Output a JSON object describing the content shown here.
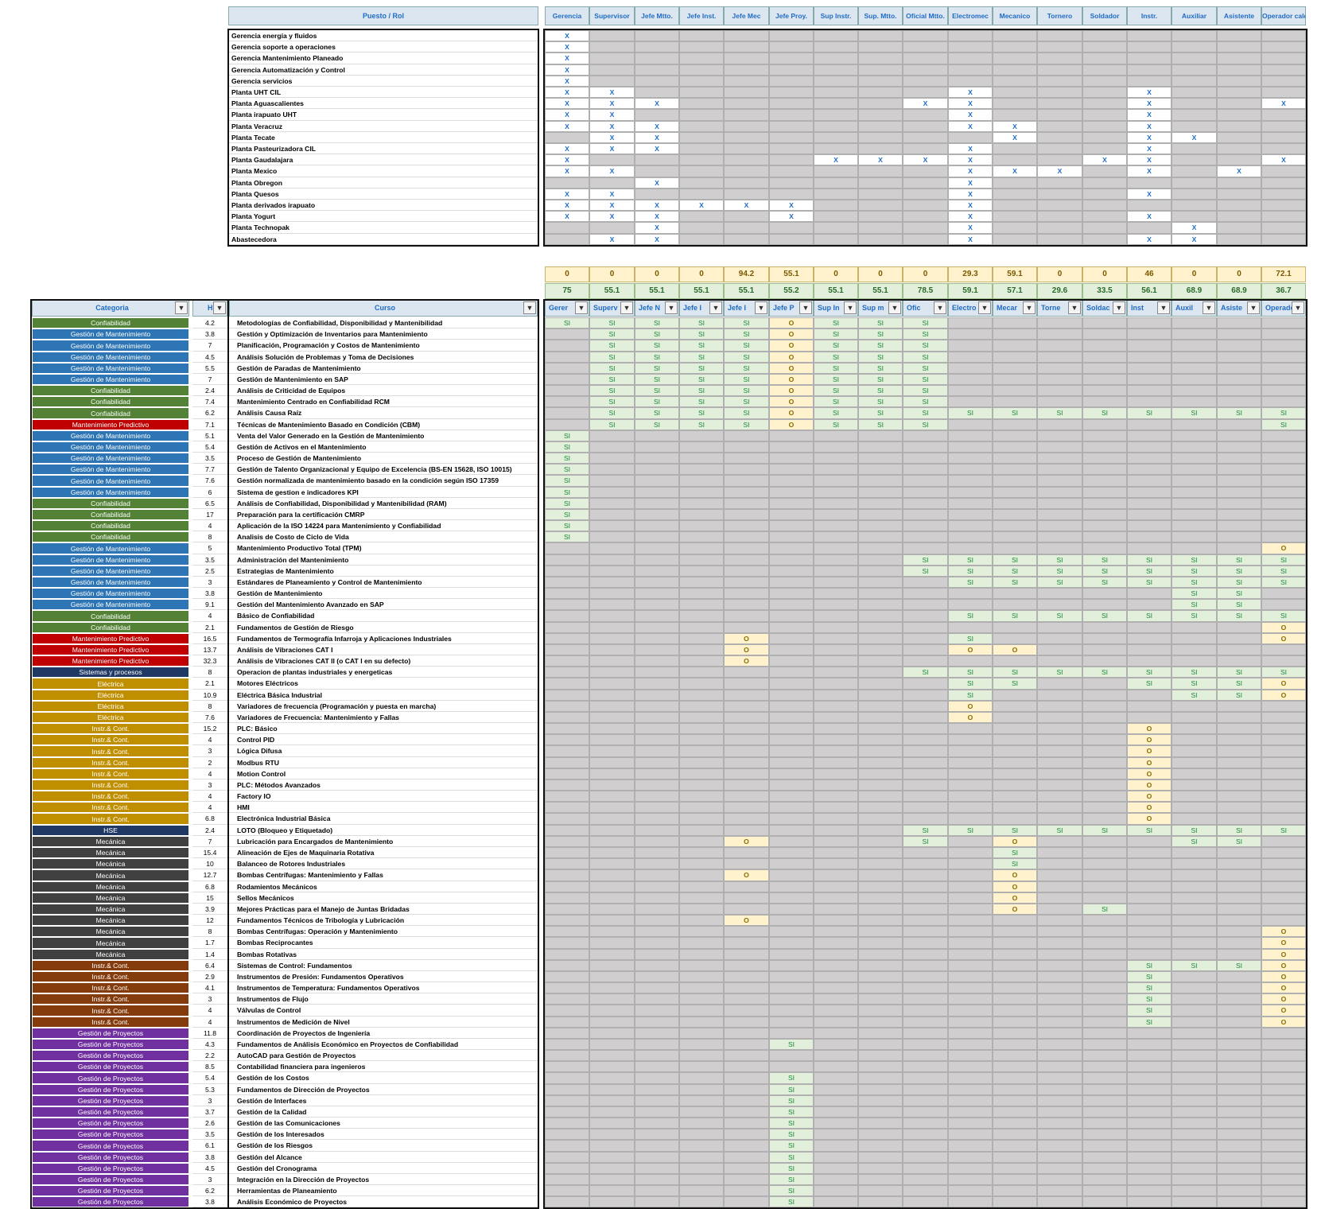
{
  "top_header": {
    "puesto_label": "Puesto / Rol",
    "roles": [
      "Gerencia",
      "Supervisor",
      "Jefe Mtto.",
      "Jefe Inst.",
      "Jefe Mec",
      "Jefe Proy.",
      "Sup Instr.",
      "Sup. Mtto.",
      "Oficial Mtto.",
      "Electromec",
      "Mecanico",
      "Tornero",
      "Soldador",
      "Instr.",
      "Auxiliar",
      "Asistente",
      "Operador cald."
    ]
  },
  "plants": [
    {
      "name": "Gerencia energía y fluidos",
      "x": [
        0
      ]
    },
    {
      "name": "Gerencia soporte a operaciones",
      "x": [
        0
      ]
    },
    {
      "name": "Gerencia Mantenimiento Planeado",
      "x": [
        0
      ]
    },
    {
      "name": "Gerencia Automatización y Control",
      "x": [
        0
      ]
    },
    {
      "name": "Gerencia servicios",
      "x": [
        0
      ]
    },
    {
      "name": "Planta UHT CIL",
      "x": [
        0,
        1,
        9,
        13
      ]
    },
    {
      "name": "Planta Aguascalientes",
      "x": [
        0,
        1,
        2,
        8,
        9,
        13,
        16
      ]
    },
    {
      "name": "Planta irapuato UHT",
      "x": [
        0,
        1,
        9,
        13
      ]
    },
    {
      "name": "Planta Veracruz",
      "x": [
        0,
        1,
        2,
        9,
        10,
        13
      ]
    },
    {
      "name": "Planta Tecate",
      "x": [
        1,
        2,
        10,
        13,
        14
      ]
    },
    {
      "name": "Planta Pasteurizadora CIL",
      "x": [
        0,
        1,
        2,
        9,
        13
      ]
    },
    {
      "name": "Planta Gaudalajara",
      "x": [
        0,
        6,
        7,
        8,
        9,
        12,
        13,
        16
      ]
    },
    {
      "name": "Planta Mexico",
      "x": [
        0,
        1,
        9,
        10,
        11,
        13,
        15
      ]
    },
    {
      "name": "Planta Obregon",
      "x": [
        2,
        9
      ]
    },
    {
      "name": "Planta Quesos",
      "x": [
        0,
        1,
        9,
        13
      ]
    },
    {
      "name": "Planta derivados irapuato",
      "x": [
        0,
        1,
        2,
        3,
        4,
        5,
        9
      ]
    },
    {
      "name": "Planta Yogurt",
      "x": [
        0,
        1,
        2,
        5,
        9,
        13
      ]
    },
    {
      "name": "Planta Technopak",
      "x": [
        2,
        9,
        14
      ]
    },
    {
      "name": "Abastecedora",
      "x": [
        1,
        2,
        9,
        13,
        14
      ]
    }
  ],
  "x_mark": "X",
  "summary_row1": [
    "0",
    "0",
    "0",
    "0",
    "94.2",
    "55.1",
    "0",
    "0",
    "0",
    "29.3",
    "59.1",
    "0",
    "0",
    "46",
    "0",
    "0",
    "72.1"
  ],
  "summary_row2": [
    "75",
    "55.1",
    "55.1",
    "55.1",
    "55.1",
    "55.2",
    "55.1",
    "55.1",
    "78.5",
    "59.1",
    "57.1",
    "29.6",
    "33.5",
    "56.1",
    "68.9",
    "68.9",
    "36.7"
  ],
  "filter_header": {
    "categoria": "Categoria",
    "hrs": "Hr",
    "curso": "Curso",
    "roles_short": [
      "Gerer",
      "Superv",
      "Jefe N",
      "Jefe I",
      "Jefe I",
      "Jefe P",
      "Sup In",
      "Sup m",
      "Ofic",
      "Electro",
      "Mecar",
      "Torne",
      "Soldac",
      "Inst",
      "Auxil",
      "Asiste",
      "Operador"
    ]
  },
  "colors": {
    "Confiabilidad": "#538135",
    "Gestión de Mantenimiento": "#2e75b6",
    "Mantenimiento Predictivo": "#c00000",
    "Sistemas y procesos": "#1f3864",
    "Eléctrica": "#bf8f00",
    "Instr.& Cont. (gold)": "#bf8f00",
    "HSE": "#203864",
    "Mecánica": "#404040",
    "Instr.& Cont. (brown)": "#843c0c",
    "Gestión de Proyectos": "#7030a0",
    "x_mark": "#1f6cc5",
    "si_fill": "#e2efda",
    "o_fill": "#fff2cc",
    "gray_fill": "#d0cece"
  },
  "courses": [
    {
      "cat": "Confiabilidad",
      "color": "#538135",
      "hrs": "4.2",
      "name": "Metodologías de Confiabilidad, Disponibilidad y Mantenibilidad",
      "v": "SSSSSOSSS--------"
    },
    {
      "cat": "Gestión de Mantenimiento",
      "color": "#2e75b6",
      "hrs": "3.8",
      "name": "Gestión y Optimización de Inventarios para Mantenimiento",
      "v": "-SSSSOSSS--------"
    },
    {
      "cat": "Gestión de Mantenimiento",
      "color": "#2e75b6",
      "hrs": "7",
      "name": "Planificación, Programación y Costos de Mantenimiento",
      "v": "-SSSSOSSS--------"
    },
    {
      "cat": "Gestión de Mantenimiento",
      "color": "#2e75b6",
      "hrs": "4.5",
      "name": "Análisis Solución de Problemas y Toma de Decisiones",
      "v": "-SSSSOSSS--------"
    },
    {
      "cat": "Gestión de Mantenimiento",
      "color": "#2e75b6",
      "hrs": "5.5",
      "name": "Gestión de Paradas de Mantenimiento",
      "v": "-SSSSOSSS--------"
    },
    {
      "cat": "Gestión de Mantenimiento",
      "color": "#2e75b6",
      "hrs": "7",
      "name": "Gestión de Mantenimiento en SAP",
      "v": "-SSSSOSSS--------"
    },
    {
      "cat": "Confiabilidad",
      "color": "#538135",
      "hrs": "2.4",
      "name": "Análisis de Criticidad de Equipos",
      "v": "-SSSSOSSS--------"
    },
    {
      "cat": "Confiabilidad",
      "color": "#538135",
      "hrs": "7.4",
      "name": "Mantenimiento Centrado en Confiabilidad RCM",
      "v": "-SSSSOSSS--------"
    },
    {
      "cat": "Confiabilidad",
      "color": "#538135",
      "hrs": "6.2",
      "name": "Análisis Causa Raíz",
      "v": "-SSSSOSSSSSSSSSSS"
    },
    {
      "cat": "Mantenimiento Predictivo",
      "color": "#c00000",
      "hrs": "7.1",
      "name": "Técnicas de Mantenimiento Basado en Condición (CBM)",
      "v": "-SSSSOSSS-------S"
    },
    {
      "cat": "Gestión de Mantenimiento",
      "color": "#2e75b6",
      "hrs": "5.1",
      "name": "Venta del Valor Generado en la Gestión de Mantenimiento",
      "v": "S----------------"
    },
    {
      "cat": "Gestión de Mantenimiento",
      "color": "#2e75b6",
      "hrs": "5.4",
      "name": "Gestión de Activos en el Mantenimiento",
      "v": "S----------------"
    },
    {
      "cat": "Gestión de Mantenimiento",
      "color": "#2e75b6",
      "hrs": "3.5",
      "name": "Proceso de Gestión de Mantenimiento",
      "v": "S----------------"
    },
    {
      "cat": "Gestión de Mantenimiento",
      "color": "#2e75b6",
      "hrs": "7.7",
      "name": "Gestión de Talento Organizacional y Equipo de Excelencia (BS-EN 15628, ISO 10015)",
      "v": "S----------------"
    },
    {
      "cat": "Gestión de Mantenimiento",
      "color": "#2e75b6",
      "hrs": "7.6",
      "name": "Gestión normalizada de mantenimiento basado en la condición según ISO 17359",
      "v": "S----------------"
    },
    {
      "cat": "Gestión de Mantenimiento",
      "color": "#2e75b6",
      "hrs": "6",
      "name": "Sistema de gestion e indicadores KPI",
      "v": "S----------------"
    },
    {
      "cat": "Confiabilidad",
      "color": "#538135",
      "hrs": "6.5",
      "name": "Análisis de Confiabilidad, Disponibilidad y Mantenibilidad (RAM)",
      "v": "S----------------"
    },
    {
      "cat": "Confiabilidad",
      "color": "#538135",
      "hrs": "17",
      "name": "Preparación para la certificación CMRP",
      "v": "S----------------"
    },
    {
      "cat": "Confiabilidad",
      "color": "#538135",
      "hrs": "4",
      "name": "Aplicación de la ISO 14224 para Mantenimiento y Confiabilidad",
      "v": "S----------------"
    },
    {
      "cat": "Confiabilidad",
      "color": "#538135",
      "hrs": "8",
      "name": "Analisis de Costo de Ciclo de Vida",
      "v": "S----------------"
    },
    {
      "cat": "Gestión de Mantenimiento",
      "color": "#2e75b6",
      "hrs": "5",
      "name": "Mantenimiento Productivo Total (TPM)",
      "v": "----------------O"
    },
    {
      "cat": "Gestión de Mantenimiento",
      "color": "#2e75b6",
      "hrs": "3.5",
      "name": "Administración del Mantenimiento",
      "v": "--------SSSSSSSSS"
    },
    {
      "cat": "Gestión de Mantenimiento",
      "color": "#2e75b6",
      "hrs": "2.5",
      "name": "Estrategias de Mantenimiento",
      "v": "--------SSSSSSSSS"
    },
    {
      "cat": "Gestión de Mantenimiento",
      "color": "#2e75b6",
      "hrs": "3",
      "name": "Estándares de Planeamiento y Control de Mantenimiento",
      "v": "---------SSSSSSSS"
    },
    {
      "cat": "Gestión de Mantenimiento",
      "color": "#2e75b6",
      "hrs": "3.8",
      "name": "Gestión de Mantenimiento",
      "v": "--------------SS-"
    },
    {
      "cat": "Gestión de Mantenimiento",
      "color": "#2e75b6",
      "hrs": "9.1",
      "name": "Gestión del Mantenimiento Avanzado en SAP",
      "v": "--------------SS-"
    },
    {
      "cat": "Confiabilidad",
      "color": "#538135",
      "hrs": "4",
      "name": "Básico de Confiabilidad",
      "v": "---------SSSSSSSS"
    },
    {
      "cat": "Confiabilidad",
      "color": "#538135",
      "hrs": "2.1",
      "name": "Fundamentos de Gestión de Riesgo",
      "v": "----------------O"
    },
    {
      "cat": "Mantenimiento Predictivo",
      "color": "#c00000",
      "hrs": "16.5",
      "name": "Fundamentos de Termografía Infarroja y Aplicaciones Industriales",
      "v": "----O----S------O"
    },
    {
      "cat": "Mantenimiento Predictivo",
      "color": "#c00000",
      "hrs": "13.7",
      "name": "Análisis de Vibraciones CAT I",
      "v": "----O----OO------"
    },
    {
      "cat": "Mantenimiento Predictivo",
      "color": "#c00000",
      "hrs": "32.3",
      "name": "Análisis de Vibraciones CAT II (o CAT I en su defecto)",
      "v": "----O------------"
    },
    {
      "cat": "Sistemas y procesos",
      "color": "#1f3864",
      "hrs": "8",
      "name": "Operacion de plantas industriales y energeticas",
      "v": "--------SSSSSSSSS"
    },
    {
      "cat": "Eléctrica",
      "color": "#bf8f00",
      "hrs": "2.1",
      "name": "Motores Eléctricos",
      "v": "---------SS--SSSO"
    },
    {
      "cat": "Eléctrica",
      "color": "#bf8f00",
      "hrs": "10.9",
      "name": "Eléctrica Básica Industrial",
      "v": "---------S----SSO"
    },
    {
      "cat": "Eléctrica",
      "color": "#bf8f00",
      "hrs": "8",
      "name": "Variadores de frecuencia (Programación y puesta en marcha)",
      "v": "---------O-------"
    },
    {
      "cat": "Eléctrica",
      "color": "#bf8f00",
      "hrs": "7.6",
      "name": "Variadores de Frecuencia: Mantenimiento y Fallas",
      "v": "---------O-------"
    },
    {
      "cat": "Instr.& Cont.",
      "color": "#bf8f00",
      "hrs": "15.2",
      "name": "PLC: Básico",
      "v": "-------------O---"
    },
    {
      "cat": "Instr.& Cont.",
      "color": "#bf8f00",
      "hrs": "4",
      "name": "Control PID",
      "v": "-------------O---"
    },
    {
      "cat": "Instr.& Cont.",
      "color": "#bf8f00",
      "hrs": "3",
      "name": "Lógica Difusa",
      "v": "-------------O---"
    },
    {
      "cat": "Instr.& Cont.",
      "color": "#bf8f00",
      "hrs": "2",
      "name": "Modbus RTU",
      "v": "-------------O---"
    },
    {
      "cat": "Instr.& Cont.",
      "color": "#bf8f00",
      "hrs": "4",
      "name": "Motion Control",
      "v": "-------------O---"
    },
    {
      "cat": "Instr.& Cont.",
      "color": "#bf8f00",
      "hrs": "3",
      "name": "PLC: Métodos Avanzados",
      "v": "-------------O---"
    },
    {
      "cat": "Instr.& Cont.",
      "color": "#bf8f00",
      "hrs": "4",
      "name": "Factory IO",
      "v": "-------------O---"
    },
    {
      "cat": "Instr.& Cont.",
      "color": "#bf8f00",
      "hrs": "4",
      "name": "HMI",
      "v": "-------------O---"
    },
    {
      "cat": "Instr.& Cont.",
      "color": "#bf8f00",
      "hrs": "6.8",
      "name": "Electrónica Industrial Básica",
      "v": "-------------O---"
    },
    {
      "cat": "HSE",
      "color": "#203864",
      "hrs": "2.4",
      "name": "LOTO (Bloqueo y Etiquetado)",
      "v": "--------SSSSSSSSS"
    },
    {
      "cat": "Mecánica",
      "color": "#404040",
      "hrs": "7",
      "name": "Lubricación para Encargados de Mantenimiento",
      "v": "----O---S-O---SS-"
    },
    {
      "cat": "Mecánica",
      "color": "#404040",
      "hrs": "15.4",
      "name": "Alineación de Ejes de Maquinaria Rotativa",
      "v": "----------S------"
    },
    {
      "cat": "Mecánica",
      "color": "#404040",
      "hrs": "10",
      "name": "Balanceo de Rotores Industriales",
      "v": "----------S------"
    },
    {
      "cat": "Mecánica",
      "color": "#404040",
      "hrs": "12.7",
      "name": "Bombas Centrífugas: Mantenimiento y Fallas",
      "v": "----O-----O------"
    },
    {
      "cat": "Mecánica",
      "color": "#404040",
      "hrs": "6.8",
      "name": "Rodamientos Mecánicos",
      "v": "----------O------"
    },
    {
      "cat": "Mecánica",
      "color": "#404040",
      "hrs": "15",
      "name": "Sellos Mecánicos",
      "v": "----------O------"
    },
    {
      "cat": "Mecánica",
      "color": "#404040",
      "hrs": "3.9",
      "name": "Mejores Prácticas para el Manejo de Juntas Bridadas",
      "v": "----------O-S----"
    },
    {
      "cat": "Mecánica",
      "color": "#404040",
      "hrs": "12",
      "name": "Fundamentos Técnicos de Tribología y Lubricación",
      "v": "----O------------"
    },
    {
      "cat": "Mecánica",
      "color": "#404040",
      "hrs": "8",
      "name": "Bombas Centrífugas: Operación y Mantenimiento",
      "v": "----------------O"
    },
    {
      "cat": "Mecánica",
      "color": "#404040",
      "hrs": "1.7",
      "name": "Bombas Reciprocantes",
      "v": "----------------O"
    },
    {
      "cat": "Mecánica",
      "color": "#404040",
      "hrs": "1.4",
      "name": "Bombas Rotativas",
      "v": "----------------O"
    },
    {
      "cat": "Instr.& Cont.",
      "color": "#843c0c",
      "hrs": "6.4",
      "name": "Sistemas de Control: Fundamentos",
      "v": "-------------SSSO"
    },
    {
      "cat": "Instr.& Cont.",
      "color": "#843c0c",
      "hrs": "2.9",
      "name": "Instrumentos de Presión: Fundamentos Operativos",
      "v": "-------------S--O"
    },
    {
      "cat": "Instr.& Cont.",
      "color": "#843c0c",
      "hrs": "4.1",
      "name": "Instrumentos de Temperatura: Fundamentos Operativos",
      "v": "-------------S--O"
    },
    {
      "cat": "Instr.& Cont.",
      "color": "#843c0c",
      "hrs": "3",
      "name": "Instrumentos de Flujo",
      "v": "-------------S--O"
    },
    {
      "cat": "Instr.& Cont.",
      "color": "#843c0c",
      "hrs": "4",
      "name": "Válvulas de Control",
      "v": "-------------S--O"
    },
    {
      "cat": "Instr.& Cont.",
      "color": "#843c0c",
      "hrs": "4",
      "name": "Instrumentos de Medición de Nivel",
      "v": "-------------S--O"
    },
    {
      "cat": "Gestión de Proyectos",
      "color": "#7030a0",
      "hrs": "11.8",
      "name": "Coordinación de Proyectos de Ingeniería",
      "v": "-----------------"
    },
    {
      "cat": "Gestión de Proyectos",
      "color": "#7030a0",
      "hrs": "4.3",
      "name": "Fundamentos de Análisis Económico en Proyectos de Confiabilidad",
      "v": "-----S-----------"
    },
    {
      "cat": "Gestión de Proyectos",
      "color": "#7030a0",
      "hrs": "2.2",
      "name": "AutoCAD para Gestión de Proyectos",
      "v": "-----------------"
    },
    {
      "cat": "Gestión de Proyectos",
      "color": "#7030a0",
      "hrs": "8.5",
      "name": "Contabilidad financiera para ingenieros",
      "v": "-----------------"
    },
    {
      "cat": "Gestión de Proyectos",
      "color": "#7030a0",
      "hrs": "5.4",
      "name": "Gestión de los Costos",
      "v": "-----S-----------"
    },
    {
      "cat": "Gestión de Proyectos",
      "color": "#7030a0",
      "hrs": "5.3",
      "name": "Fundamentos de Dirección de Proyectos",
      "v": "-----S-----------"
    },
    {
      "cat": "Gestión de Proyectos",
      "color": "#7030a0",
      "hrs": "3",
      "name": "Gestión de Interfaces",
      "v": "-----S-----------"
    },
    {
      "cat": "Gestión de Proyectos",
      "color": "#7030a0",
      "hrs": "3.7",
      "name": "Gestión de la Calidad",
      "v": "-----S-----------"
    },
    {
      "cat": "Gestión de Proyectos",
      "color": "#7030a0",
      "hrs": "2.6",
      "name": "Gestión de las Comunicaciones",
      "v": "-----S-----------"
    },
    {
      "cat": "Gestión de Proyectos",
      "color": "#7030a0",
      "hrs": "3.5",
      "name": "Gestión de los Interesados",
      "v": "-----S-----------"
    },
    {
      "cat": "Gestión de Proyectos",
      "color": "#7030a0",
      "hrs": "6.1",
      "name": "Gestión de los Riesgos",
      "v": "-----S-----------"
    },
    {
      "cat": "Gestión de Proyectos",
      "color": "#7030a0",
      "hrs": "3.8",
      "name": "Gestión del Alcance",
      "v": "-----S-----------"
    },
    {
      "cat": "Gestión de Proyectos",
      "color": "#7030a0",
      "hrs": "4.5",
      "name": "Gestión del Cronograma",
      "v": "-----S-----------"
    },
    {
      "cat": "Gestión de Proyectos",
      "color": "#7030a0",
      "hrs": "3",
      "name": "Integración en la Dirección de Proyectos",
      "v": "-----S-----------"
    },
    {
      "cat": "Gestión de Proyectos",
      "color": "#7030a0",
      "hrs": "6.2",
      "name": "Herramientas de Planeamiento",
      "v": "-----S-----------"
    },
    {
      "cat": "Gestión de Proyectos",
      "color": "#7030a0",
      "hrs": "3.8",
      "name": "Análisis Económico de Proyectos",
      "v": "-----S-----------"
    }
  ],
  "si_label": "SI",
  "o_label": "O"
}
